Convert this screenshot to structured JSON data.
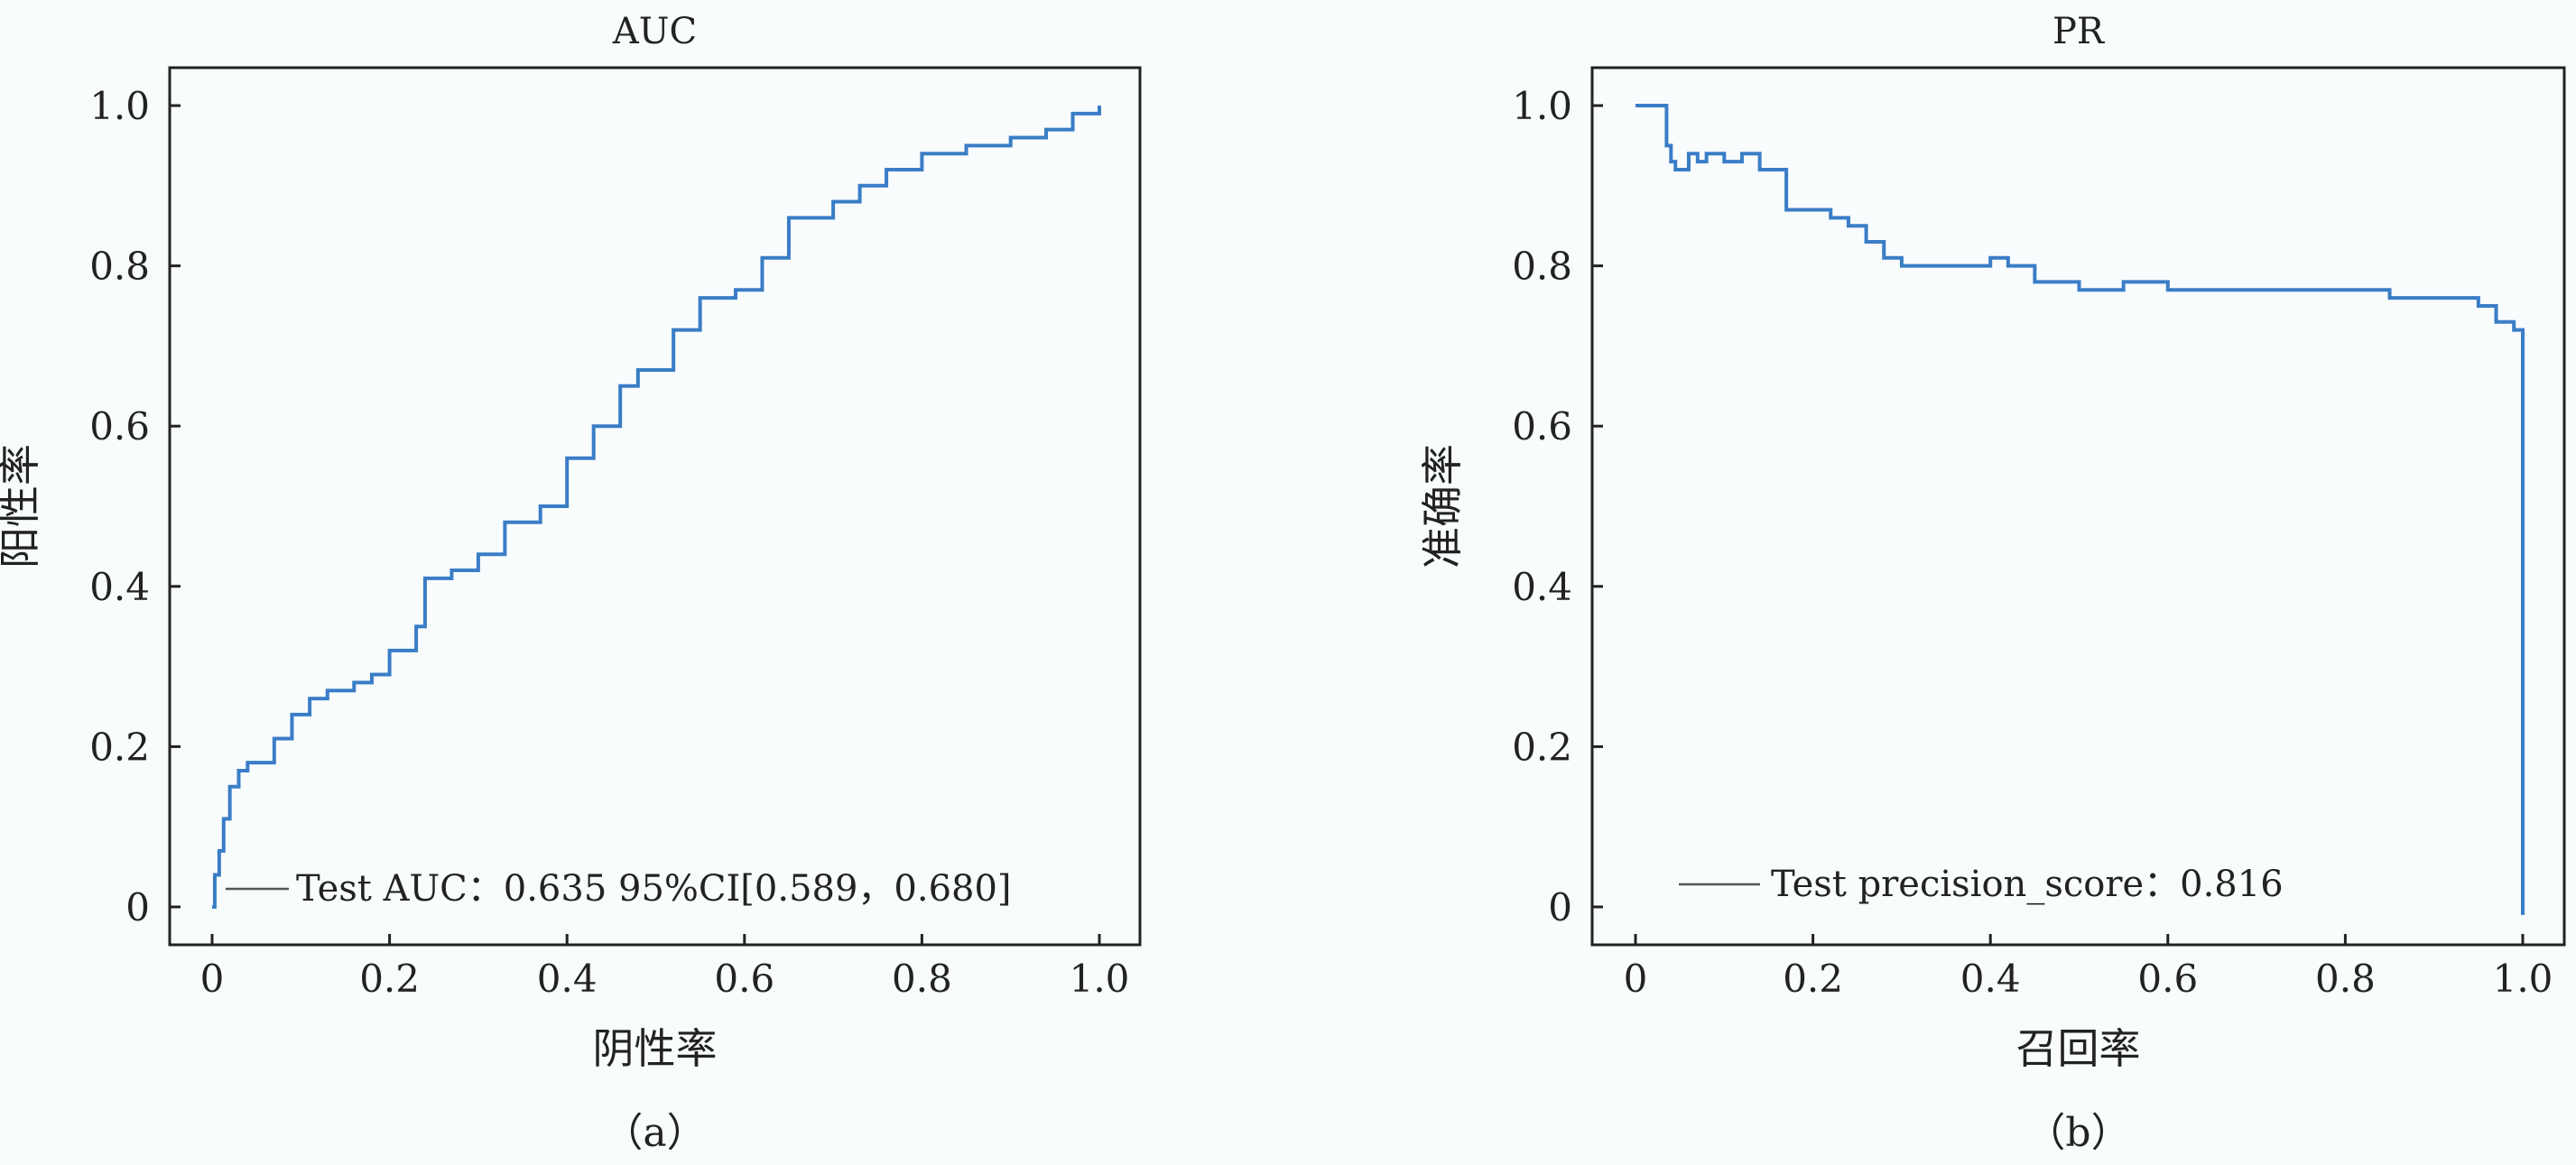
{
  "chart_data": [
    {
      "type": "line",
      "title": "AUC",
      "xlabel": "阴性率",
      "ylabel": "阳性率",
      "caption": "（a）",
      "xlim": [
        0,
        1
      ],
      "ylim": [
        0,
        1
      ],
      "x_ticks": [
        "0",
        "0.2",
        "0.4",
        "0.6",
        "0.8",
        "1.0"
      ],
      "y_ticks": [
        "0",
        "0.2",
        "0.4",
        "0.6",
        "0.8",
        "1.0"
      ],
      "grid": false,
      "legend_position": "bottom-right",
      "series": [
        {
          "name": "Test AUC：0.635 95%CI[0.589，0.680]",
          "color": "#3a7dc7",
          "x": [
            0,
            0.003,
            0.008,
            0.013,
            0.02,
            0.03,
            0.04,
            0.07,
            0.09,
            0.11,
            0.13,
            0.16,
            0.18,
            0.2,
            0.23,
            0.24,
            0.27,
            0.3,
            0.33,
            0.37,
            0.4,
            0.43,
            0.46,
            0.48,
            0.52,
            0.55,
            0.59,
            0.62,
            0.65,
            0.7,
            0.73,
            0.76,
            0.8,
            0.85,
            0.9,
            0.94,
            0.97,
            1.0
          ],
          "y": [
            0,
            0.04,
            0.07,
            0.11,
            0.15,
            0.17,
            0.18,
            0.21,
            0.24,
            0.26,
            0.27,
            0.28,
            0.29,
            0.32,
            0.35,
            0.41,
            0.42,
            0.44,
            0.48,
            0.5,
            0.56,
            0.6,
            0.65,
            0.67,
            0.72,
            0.76,
            0.77,
            0.81,
            0.86,
            0.88,
            0.9,
            0.92,
            0.94,
            0.95,
            0.96,
            0.97,
            0.99,
            1.0
          ]
        }
      ]
    },
    {
      "type": "line",
      "title": "PR",
      "xlabel": "召回率",
      "ylabel": "准确率",
      "caption": "（b）",
      "xlim": [
        0,
        1
      ],
      "ylim": [
        0,
        1
      ],
      "x_ticks": [
        "0",
        "0.2",
        "0.4",
        "0.6",
        "0.8",
        "1.0"
      ],
      "y_ticks": [
        "0",
        "0.2",
        "0.4",
        "0.6",
        "0.8",
        "1.0"
      ],
      "grid": false,
      "legend_position": "bottom-left",
      "series": [
        {
          "name": "Test precision_score：0.816",
          "color": "#3a7dc7",
          "x": [
            0,
            0.035,
            0.035,
            0.04,
            0.045,
            0.06,
            0.07,
            0.08,
            0.1,
            0.12,
            0.14,
            0.16,
            0.17,
            0.18,
            0.2,
            0.22,
            0.24,
            0.26,
            0.28,
            0.3,
            0.33,
            0.36,
            0.4,
            0.42,
            0.45,
            0.5,
            0.55,
            0.6,
            0.65,
            0.7,
            0.75,
            0.8,
            0.85,
            0.9,
            0.95,
            0.97,
            0.99,
            1.0,
            1.0
          ],
          "y": [
            1.0,
            1.0,
            0.95,
            0.93,
            0.92,
            0.94,
            0.93,
            0.94,
            0.93,
            0.94,
            0.92,
            0.92,
            0.87,
            0.87,
            0.87,
            0.86,
            0.85,
            0.83,
            0.81,
            0.8,
            0.8,
            0.8,
            0.81,
            0.8,
            0.78,
            0.77,
            0.78,
            0.77,
            0.77,
            0.77,
            0.77,
            0.77,
            0.76,
            0.76,
            0.75,
            0.73,
            0.72,
            0.72,
            -0.01
          ]
        }
      ]
    }
  ]
}
